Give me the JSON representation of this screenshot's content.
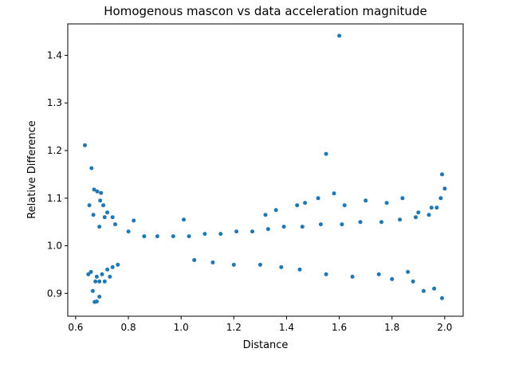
{
  "chart_data": {
    "type": "scatter",
    "title": "Homogenous mascon vs data acceleration magnitude",
    "xlabel": "Distance",
    "ylabel": "Relative Difference",
    "xlim": [
      0.57,
      2.07
    ],
    "ylim": [
      0.852,
      1.466
    ],
    "x_ticks": [
      "0.6",
      "0.8",
      "1.0",
      "1.2",
      "1.4",
      "1.6",
      "1.8",
      "2.0"
    ],
    "y_ticks": [
      "0.9",
      "1.0",
      "1.1",
      "1.2",
      "1.3",
      "1.4"
    ],
    "grid": false,
    "legend": "none",
    "point_color": "#1f77b4",
    "series": [
      {
        "points": [
          [
            0.635,
            1.211
          ],
          [
            0.66,
            1.163
          ],
          [
            1.55,
            1.193
          ],
          [
            1.6,
            1.441
          ],
          [
            0.648,
            0.94
          ],
          [
            0.658,
            0.945
          ],
          [
            0.665,
            0.905
          ],
          [
            0.672,
            0.882
          ],
          [
            0.68,
            0.883
          ],
          [
            0.69,
            0.893
          ],
          [
            0.675,
            0.925
          ],
          [
            0.67,
            1.118
          ],
          [
            0.682,
            1.114
          ],
          [
            0.696,
            1.111
          ],
          [
            0.705,
            1.085
          ],
          [
            0.693,
            1.095
          ],
          [
            0.652,
            1.085
          ],
          [
            0.72,
            1.07
          ],
          [
            0.74,
            1.06
          ],
          [
            0.76,
            0.96
          ],
          [
            0.82,
            1.053
          ],
          [
            1.01,
            1.055
          ],
          [
            1.32,
            1.065
          ],
          [
            1.36,
            1.075
          ],
          [
            1.44,
            1.085
          ],
          [
            1.47,
            1.09
          ],
          [
            1.52,
            1.1
          ],
          [
            1.58,
            1.11
          ],
          [
            1.9,
            1.07
          ],
          [
            1.95,
            1.08
          ],
          [
            1.78,
            1.09
          ],
          [
            1.84,
            1.1
          ],
          [
            1.7,
            1.095
          ],
          [
            1.62,
            1.085
          ],
          [
            1.99,
            0.89
          ],
          [
            1.96,
            0.91
          ],
          [
            1.92,
            0.905
          ],
          [
            1.88,
            0.925
          ],
          [
            1.86,
            0.945
          ],
          [
            1.8,
            0.93
          ],
          [
            1.75,
            0.94
          ],
          [
            1.65,
            0.935
          ],
          [
            1.55,
            0.94
          ],
          [
            1.45,
            0.95
          ],
          [
            1.38,
            0.955
          ],
          [
            1.3,
            0.96
          ],
          [
            1.2,
            0.96
          ],
          [
            1.12,
            0.965
          ],
          [
            1.05,
            0.97
          ],
          [
            2.0,
            1.12
          ],
          [
            1.99,
            1.15
          ],
          [
            1.97,
            1.08
          ],
          [
            1.985,
            1.1
          ],
          [
            1.94,
            1.065
          ],
          [
            1.89,
            1.06
          ],
          [
            1.83,
            1.055
          ],
          [
            1.76,
            1.05
          ],
          [
            1.68,
            1.05
          ],
          [
            1.61,
            1.045
          ],
          [
            1.53,
            1.045
          ],
          [
            1.46,
            1.04
          ],
          [
            1.39,
            1.04
          ],
          [
            1.33,
            1.035
          ],
          [
            1.27,
            1.03
          ],
          [
            1.21,
            1.03
          ],
          [
            1.15,
            1.025
          ],
          [
            1.09,
            1.025
          ],
          [
            1.03,
            1.02
          ],
          [
            0.97,
            1.02
          ],
          [
            0.91,
            1.02
          ],
          [
            0.86,
            1.02
          ],
          [
            0.8,
            1.03
          ],
          [
            0.75,
            1.045
          ],
          [
            0.71,
            1.06
          ],
          [
            0.69,
            1.04
          ],
          [
            0.667,
            1.065
          ],
          [
            0.7,
            0.94
          ],
          [
            0.72,
            0.95
          ],
          [
            0.74,
            0.955
          ],
          [
            0.69,
            0.925
          ],
          [
            0.68,
            0.935
          ],
          [
            0.71,
            0.925
          ],
          [
            0.73,
            0.935
          ]
        ]
      }
    ]
  }
}
